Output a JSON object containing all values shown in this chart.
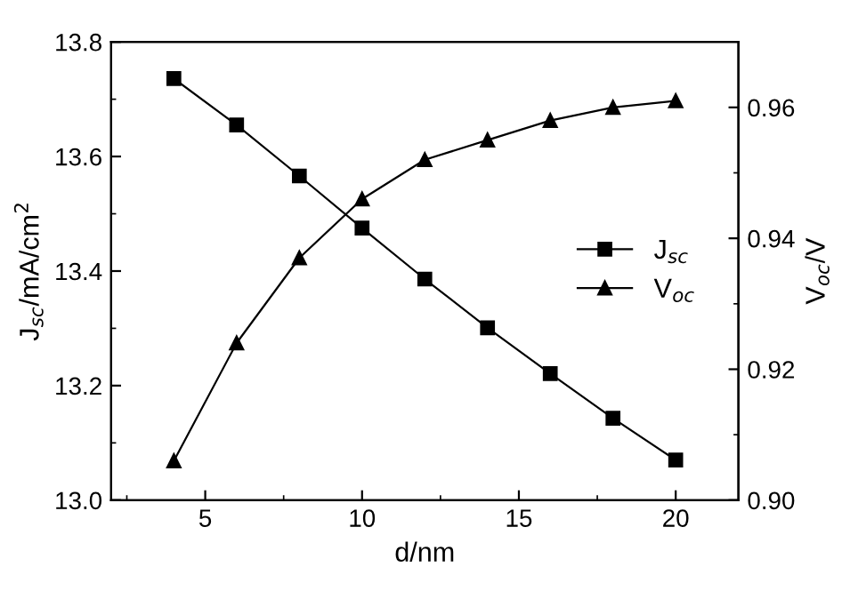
{
  "chart_data": {
    "type": "line",
    "xlabel": "d/nm",
    "ylabel": "J$_{sc}$/mA/cm$^{2}$",
    "y2label": "V$_{oc}$/V",
    "x": [
      4,
      6,
      8,
      10,
      12,
      14,
      16,
      18,
      20
    ],
    "series": [
      {
        "name": "J$_{sc}$",
        "color": "#000000",
        "marker": "square",
        "values": [
          13.736,
          13.655,
          13.566,
          13.475,
          13.386,
          13.301,
          13.221,
          13.143,
          13.07
        ]
      },
      {
        "name": "V$_{oc}$",
        "color": "#000000",
        "marker": "triangle",
        "axis": "y2",
        "values": [
          0.906,
          0.924,
          0.937,
          0.946,
          0.952,
          0.955,
          0.958,
          0.96,
          0.961
        ]
      }
    ],
    "xlim": [
      2,
      22
    ],
    "xticks": [
      {
        "value": 2.5,
        "label": null
      },
      5,
      {
        "value": 7.5,
        "label": null
      },
      10,
      {
        "value": 12.5,
        "label": null
      },
      15,
      {
        "value": 17.5,
        "label": null
      },
      20
    ],
    "ylim": [
      13.0,
      13.8
    ],
    "yticks": [
      {
        "value": 13.0,
        "label": "13.0"
      },
      {
        "value": 13.1,
        "label": null
      },
      13.2,
      {
        "value": 13.3,
        "label": null
      },
      13.4,
      {
        "value": 13.5,
        "label": null
      },
      13.6,
      {
        "value": 13.7,
        "label": null
      },
      13.8
    ],
    "y2lim": [
      0.9,
      0.97
    ],
    "y2ticks": [
      {
        "value": 0.9,
        "label": "0.90"
      },
      {
        "value": 0.91,
        "label": null
      },
      0.92,
      {
        "value": 0.93,
        "label": null
      },
      0.94,
      {
        "value": 0.95,
        "label": null
      },
      0.96
    ],
    "grid": false,
    "legend": "right",
    "line_style": "solid"
  }
}
